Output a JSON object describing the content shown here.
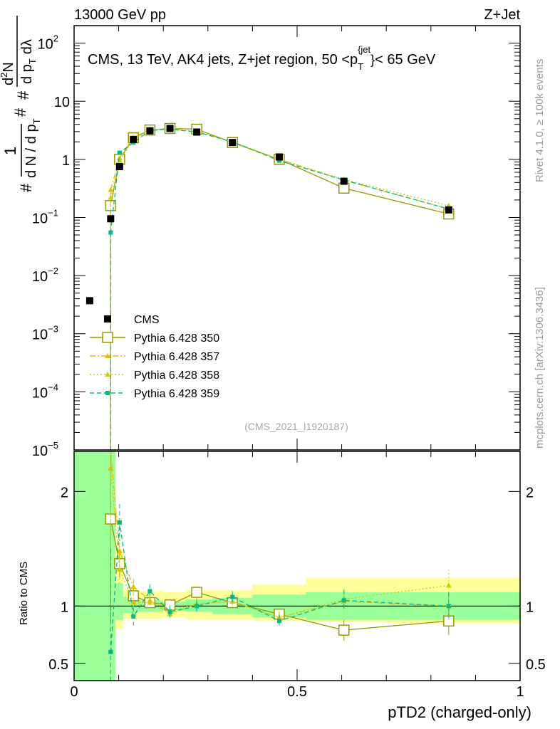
{
  "header": {
    "left": "13000 GeV pp",
    "right": "Z+Jet"
  },
  "side": {
    "rivet": "Rivet 4.1.0, ≥ 100k events",
    "mcplots": "mcplots.cern.ch [arXiv:1306.3436]"
  },
  "chart_data": {
    "type": "scatter",
    "title": "CMS, 13 TeV, AK4 jets, Z+jet region, 50 < p_T^{jet} < 65 GeV",
    "title_parts": {
      "main": "CMS, 13 TeV, AK4 jets, Z+jet region, 50 <p",
      "sub": "T",
      "sup": "{jet",
      "brace": "}",
      "tail": "< 65 GeV"
    },
    "analysis_id": "(CMS_2021_I1920187)",
    "xlabel": "pTD2 (charged-only)",
    "ylabel_main": "1/N dN/dλ",
    "ylabel_ratio": "Ratio to CMS",
    "ylabel_parts": {
      "a": "#",
      "b": "1",
      "c": "d N / d p",
      "d": "T",
      "e": "#",
      "f": "d",
      "g": "2",
      "h": "N",
      "i": "#",
      "j": "d p",
      "k": "T",
      "l": "dλ"
    },
    "xlim": [
      0,
      1
    ],
    "ylim_main": [
      1e-05,
      200
    ],
    "ylim_ratio": [
      0.35,
      2.35
    ],
    "yscale_main": "log",
    "x_ticks": [
      {
        "value": 0,
        "label": "0"
      },
      {
        "value": 0.5,
        "label": "0.5"
      },
      {
        "value": 1,
        "label": "1"
      }
    ],
    "y_ticks_main": [
      {
        "value": 100,
        "base": "10",
        "exp": "2"
      },
      {
        "value": 10,
        "base": "10",
        "exp": ""
      },
      {
        "value": 1,
        "base": "1",
        "exp": ""
      },
      {
        "value": 0.1,
        "base": "10",
        "exp": "−1"
      },
      {
        "value": 0.01,
        "base": "10",
        "exp": "−2"
      },
      {
        "value": 0.001,
        "base": "10",
        "exp": "−3"
      },
      {
        "value": 0.0001,
        "base": "10",
        "exp": "−4"
      },
      {
        "value": 1e-05,
        "base": "10",
        "exp": "−5"
      }
    ],
    "y_ticks_ratio": [
      {
        "value": 2,
        "label": "2"
      },
      {
        "value": 1,
        "label": "1"
      },
      {
        "value": 0.5,
        "label": "0.5"
      }
    ],
    "bin_edges": [
      0,
      0.072,
      0.093,
      0.11,
      0.143,
      0.2,
      0.25,
      0.31,
      0.4,
      0.52,
      0.7,
      1.0
    ],
    "data": {
      "name": "CMS",
      "x": [
        0.035,
        0.082,
        0.102,
        0.133,
        0.17,
        0.215,
        0.275,
        0.355,
        0.46,
        0.605,
        0.84
      ],
      "y": [
        0.0037,
        0.095,
        0.75,
        2.2,
        3.1,
        3.4,
        2.95,
        1.95,
        1.1,
        0.42,
        0.135
      ],
      "ratio_band_stat": [
        2.35,
        2.35,
        1.2,
        1.08,
        1.05,
        1.04,
        1.06,
        1.07,
        1.1,
        1.12,
        1.12
      ],
      "ratio_band_stat_lo": [
        0.35,
        0.35,
        0.88,
        0.94,
        0.95,
        0.96,
        0.95,
        0.93,
        0.9,
        0.88,
        0.88
      ],
      "ratio_band_tot": [
        2.35,
        2.35,
        1.5,
        1.15,
        1.13,
        1.12,
        1.14,
        1.14,
        1.19,
        1.25,
        1.25
      ],
      "ratio_band_tot_lo": [
        0.35,
        0.35,
        0.8,
        0.89,
        0.89,
        0.9,
        0.88,
        0.88,
        0.87,
        0.86,
        0.85
      ]
    },
    "series": [
      {
        "name": "Pythia 6.428 350",
        "color": "#999900",
        "style": "solid",
        "marker": "open-square",
        "x": [
          0.082,
          0.102,
          0.133,
          0.17,
          0.215,
          0.275,
          0.355,
          0.46,
          0.605,
          0.84
        ],
        "y": [
          0.16,
          1.0,
          2.35,
          3.2,
          3.4,
          3.3,
          1.95,
          1.0,
          0.32,
          0.115
        ],
        "ratio": [
          1.76,
          1.37,
          1.09,
          1.03,
          1.01,
          1.12,
          1.03,
          0.93,
          0.79,
          0.87
        ],
        "ratio_err": [
          0.9,
          0.12,
          0.06,
          0.05,
          0.05,
          0.05,
          0.05,
          0.05,
          0.09,
          0.12
        ]
      },
      {
        "name": "Pythia 6.428 357",
        "color": "#e5c000",
        "style": "dashdot",
        "marker": "triangle",
        "x": [
          0.082,
          0.102,
          0.133,
          0.17,
          0.215,
          0.275,
          0.355,
          0.46,
          0.605,
          0.84
        ],
        "y": [
          0.3,
          1.05,
          2.4,
          3.25,
          3.3,
          3.0,
          2.0,
          1.0,
          0.44,
          0.14
        ],
        "ratio": [
          2.4,
          1.48,
          1.17,
          1.05,
          0.93,
          1.02,
          1.04,
          0.9,
          1.04,
          1.0
        ],
        "ratio_err": [
          0.9,
          0.14,
          0.07,
          0.05,
          0.05,
          0.05,
          0.05,
          0.05,
          0.09,
          0.12
        ]
      },
      {
        "name": "Pythia 6.428 358",
        "color": "#cccc00",
        "style": "dotted",
        "marker": "triangle",
        "x": [
          0.082,
          0.102,
          0.133,
          0.17,
          0.215,
          0.275,
          0.355,
          0.46,
          0.605,
          0.84
        ],
        "y": [
          0.22,
          0.95,
          2.2,
          3.2,
          3.35,
          3.0,
          2.0,
          1.0,
          0.45,
          0.16
        ],
        "ratio": [
          2.2,
          1.32,
          1.03,
          1.03,
          0.96,
          1.02,
          1.04,
          0.9,
          1.06,
          1.18
        ],
        "ratio_err": [
          0.9,
          0.14,
          0.07,
          0.05,
          0.05,
          0.05,
          0.05,
          0.05,
          0.09,
          0.14
        ]
      },
      {
        "name": "Pythia 6.428 359",
        "color": "#00bb88",
        "style": "dashed",
        "marker": "filled-square",
        "x": [
          0.082,
          0.102,
          0.133,
          0.17,
          0.215,
          0.275,
          0.355,
          0.46,
          0.605,
          0.84
        ],
        "y": [
          0.055,
          1.3,
          1.95,
          3.15,
          3.3,
          2.95,
          2.0,
          0.95,
          0.44,
          0.14
        ],
        "ratio": [
          0.6,
          1.73,
          0.91,
          1.13,
          0.95,
          1.0,
          1.08,
          0.87,
          1.05,
          1.0
        ],
        "ratio_err": [
          0.9,
          0.16,
          0.08,
          0.06,
          0.05,
          0.05,
          0.05,
          0.06,
          0.09,
          0.12
        ]
      }
    ],
    "legend": {
      "placement": "bottom-left",
      "data_label": "CMS"
    }
  }
}
